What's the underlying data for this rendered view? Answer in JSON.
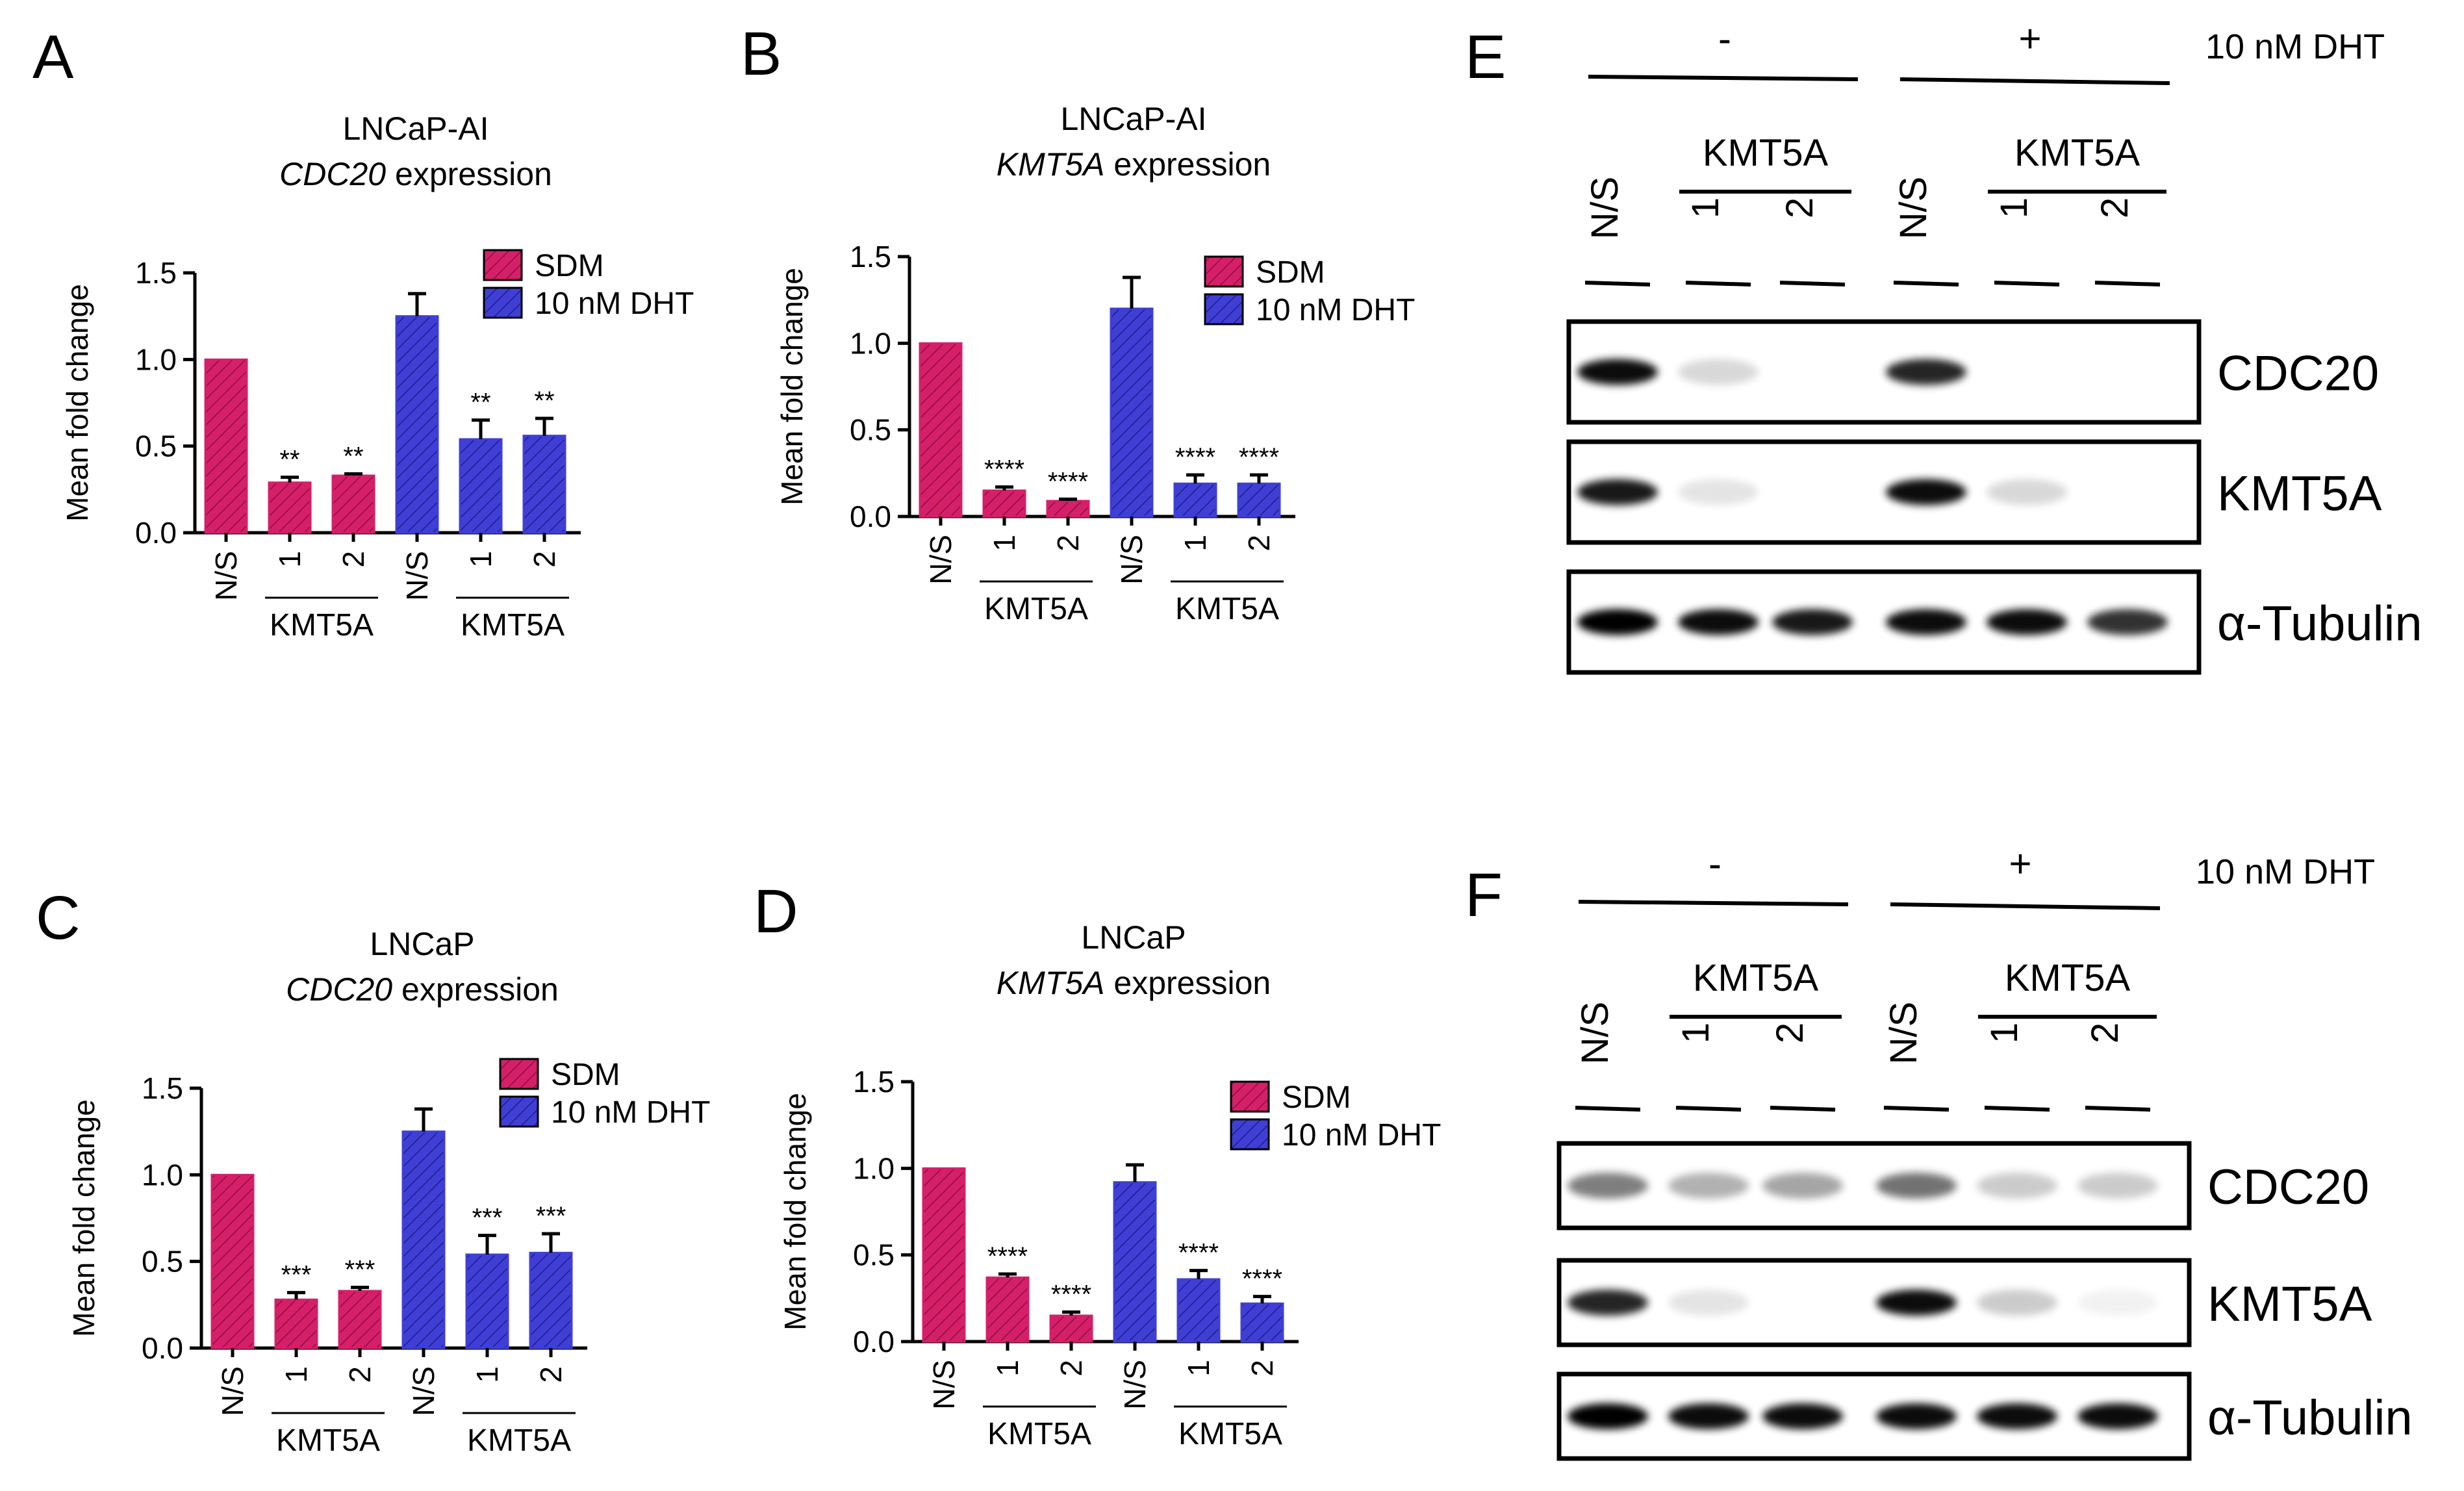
{
  "chart_data": [
    {
      "type": "bar",
      "panel_letter": "A",
      "title": "LNCaP-AI",
      "subtitle_gene": "CDC20",
      "subtitle_rest": " expression",
      "ylabel": "Mean fold change",
      "ylim": [
        0,
        1.5
      ],
      "yticks": [
        "0.0",
        "0.5",
        "1.0",
        "1.5"
      ],
      "categories": [
        "N/S",
        "1",
        "2",
        "N/S",
        "1",
        "2"
      ],
      "group_label": "KMT5A",
      "legend": [
        "SDM",
        "10 nM DHT"
      ],
      "colors": [
        "#d61f69",
        "#3f3fd6"
      ],
      "values": [
        1.0,
        0.29,
        0.33,
        1.25,
        0.54,
        0.56
      ],
      "errors": [
        0,
        0.03,
        0.01,
        0.13,
        0.11,
        0.1
      ],
      "series_index": [
        0,
        0,
        0,
        1,
        1,
        1
      ],
      "significance": [
        "",
        "**",
        "**",
        "",
        "**",
        "**"
      ]
    },
    {
      "type": "bar",
      "panel_letter": "B",
      "title": "LNCaP-AI",
      "subtitle_gene": "KMT5A",
      "subtitle_rest": " expression",
      "ylabel": "Mean fold change",
      "ylim": [
        0,
        1.5
      ],
      "yticks": [
        "0.0",
        "0.5",
        "1.0",
        "1.5"
      ],
      "categories": [
        "N/S",
        "1",
        "2",
        "N/S",
        "1",
        "2"
      ],
      "group_label": "KMT5A",
      "legend": [
        "SDM",
        "10 nM DHT"
      ],
      "colors": [
        "#d61f69",
        "#3f3fd6"
      ],
      "values": [
        1.0,
        0.15,
        0.09,
        1.2,
        0.19,
        0.19
      ],
      "errors": [
        0,
        0.02,
        0.01,
        0.18,
        0.05,
        0.05
      ],
      "series_index": [
        0,
        0,
        0,
        1,
        1,
        1
      ],
      "significance": [
        "",
        "****",
        "****",
        "",
        "****",
        "****"
      ]
    },
    {
      "type": "bar",
      "panel_letter": "C",
      "title": "LNCaP",
      "subtitle_gene": "CDC20",
      "subtitle_rest": " expression",
      "ylabel": "Mean fold change",
      "ylim": [
        0,
        1.5
      ],
      "yticks": [
        "0.0",
        "0.5",
        "1.0",
        "1.5"
      ],
      "categories": [
        "N/S",
        "1",
        "2",
        "N/S",
        "1",
        "2"
      ],
      "group_label": "KMT5A",
      "legend": [
        "SDM",
        "10 nM DHT"
      ],
      "colors": [
        "#d61f69",
        "#3f3fd6"
      ],
      "values": [
        1.0,
        0.28,
        0.33,
        1.25,
        0.54,
        0.55
      ],
      "errors": [
        0,
        0.04,
        0.02,
        0.13,
        0.11,
        0.11
      ],
      "series_index": [
        0,
        0,
        0,
        1,
        1,
        1
      ],
      "significance": [
        "",
        "***",
        "***",
        "",
        "***",
        "***"
      ]
    },
    {
      "type": "bar",
      "panel_letter": "D",
      "title": "LNCaP",
      "subtitle_gene": "KMT5A",
      "subtitle_rest": " expression",
      "ylabel": "Mean fold change",
      "ylim": [
        0,
        1.5
      ],
      "yticks": [
        "0.0",
        "0.5",
        "1.0",
        "1.5"
      ],
      "categories": [
        "N/S",
        "1",
        "2",
        "N/S",
        "1",
        "2"
      ],
      "group_label": "KMT5A",
      "legend": [
        "SDM",
        "10 nM DHT"
      ],
      "colors": [
        "#d61f69",
        "#3f3fd6"
      ],
      "values": [
        1.0,
        0.37,
        0.15,
        0.92,
        0.36,
        0.22
      ],
      "errors": [
        0,
        0.02,
        0.02,
        0.1,
        0.05,
        0.04
      ],
      "series_index": [
        0,
        0,
        0,
        1,
        1,
        1
      ],
      "significance": [
        "",
        "****",
        "****",
        "",
        "****",
        "****"
      ]
    }
  ],
  "blots": [
    {
      "panel_letter": "E",
      "treatment_label": "10 nM DHT",
      "treatment_minus": "-",
      "treatment_plus": "+",
      "group_label": "KMT5A",
      "lanes": [
        "N/S",
        "1",
        "2",
        "N/S",
        "1",
        "2"
      ],
      "rows": [
        {
          "label": "CDC20",
          "intensity": [
            0.95,
            0.15,
            0.0,
            0.85,
            0.0,
            0.0
          ]
        },
        {
          "label": "KMT5A",
          "intensity": [
            0.9,
            0.1,
            0.0,
            0.95,
            0.15,
            0.0
          ]
        },
        {
          "label": "α-Tubulin",
          "intensity": [
            1.0,
            0.95,
            0.9,
            0.95,
            0.95,
            0.8
          ]
        }
      ]
    },
    {
      "panel_letter": "F",
      "treatment_label": "10 nM DHT",
      "treatment_minus": "-",
      "treatment_plus": "+",
      "group_label": "KMT5A",
      "lanes": [
        "N/S",
        "1",
        "2",
        "N/S",
        "1",
        "2"
      ],
      "rows": [
        {
          "label": "CDC20",
          "intensity": [
            0.5,
            0.3,
            0.35,
            0.55,
            0.2,
            0.2
          ]
        },
        {
          "label": "KMT5A",
          "intensity": [
            0.85,
            0.1,
            0.0,
            0.95,
            0.2,
            0.05
          ]
        },
        {
          "label": "α-Tubulin",
          "intensity": [
            1.0,
            0.95,
            0.95,
            0.95,
            0.95,
            0.95
          ]
        }
      ]
    }
  ]
}
